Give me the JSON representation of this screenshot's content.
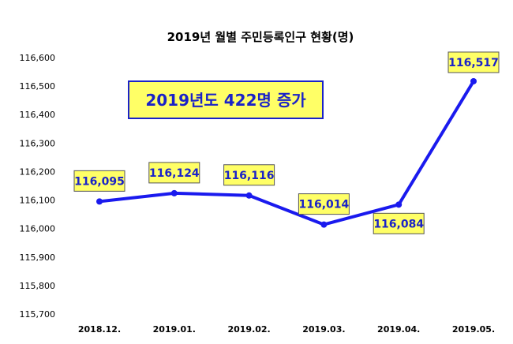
{
  "chart_data": {
    "type": "line",
    "title": "2019년 월별 주민등록인구 현황(명)",
    "categories": [
      "2018.12.",
      "2019.01.",
      "2019.02.",
      "2019.03.",
      "2019.04.",
      "2019.05."
    ],
    "values": [
      116095,
      116124,
      116116,
      116014,
      116084,
      116517
    ],
    "data_labels": [
      "116,095",
      "116,124",
      "116,116",
      "116,014",
      "116,084",
      "116,517"
    ],
    "ylim": [
      115700,
      116600
    ],
    "yticks": [
      115700,
      115800,
      115900,
      116000,
      116100,
      116200,
      116300,
      116400,
      116500,
      116600
    ],
    "ytick_labels": [
      "115,700",
      "115,800",
      "115,900",
      "116,000",
      "116,100",
      "116,200",
      "116,300",
      "116,400",
      "116,500",
      "116,600"
    ],
    "xlabel": "",
    "ylabel": "",
    "grid": false,
    "annotation": "2019년도 422명 증가",
    "colors": {
      "line": "#1a1aee",
      "label_bg": "#ffff66",
      "label_text": "#1a22c8",
      "annotation_border": "#1a22c8"
    }
  }
}
